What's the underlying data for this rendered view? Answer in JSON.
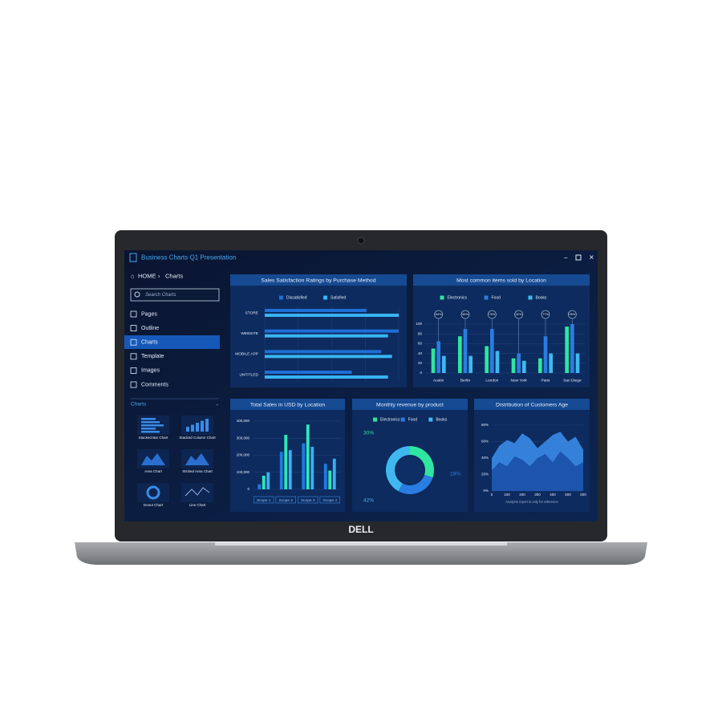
{
  "window": {
    "title": "Business Charts Q1 Presentation"
  },
  "sidebar": {
    "breadcrumb": [
      "HOME",
      "Charts"
    ],
    "search_placeholder": "Search Charts",
    "menu": [
      "Pages",
      "Outline",
      "Charts",
      "Template",
      "Images",
      "Comments"
    ],
    "section": "Charts",
    "thumbnails": [
      "Stacked Bar Chart",
      "Stacked Column Chart",
      "Area Chart",
      "Sticked Area Chart",
      "Donut Chart",
      "Line Chart"
    ]
  },
  "brand": "DELL",
  "chart_data": [
    {
      "type": "hbar",
      "title": "Sales Satisfaction Ratings by Purchase Method",
      "categories": [
        "STORE",
        "WEBSITE",
        "MOBILE APP",
        "UNTITLED"
      ],
      "series": [
        {
          "name": "Dissatisfied",
          "color": "#1f6fd6",
          "values": [
            76,
            100,
            87,
            65
          ]
        },
        {
          "name": "Satisfied",
          "color": "#38b4f2",
          "values": [
            100,
            92,
            95,
            92
          ]
        }
      ],
      "xlim": [
        0,
        100
      ]
    },
    {
      "type": "bar",
      "title": "Most common items sold by Location",
      "categories": [
        "Austin",
        "Berlin",
        "London",
        "New York",
        "Paris",
        "San Diego"
      ],
      "series": [
        {
          "name": "Electronics",
          "color": "#2ee6a0",
          "values": [
            50,
            75,
            55,
            30,
            30,
            95
          ]
        },
        {
          "name": "Food",
          "color": "#2a7de1",
          "values": [
            65,
            90,
            90,
            40,
            75,
            100
          ]
        },
        {
          "name": "Books",
          "color": "#3fb8f0",
          "values": [
            35,
            35,
            45,
            25,
            40,
            40
          ]
        }
      ],
      "annotations": [
        "64%",
        "50%",
        "75%",
        "42%",
        "77%",
        "95%"
      ],
      "ylim": [
        0,
        100
      ],
      "yticks": [
        0,
        20,
        40,
        60,
        80,
        100
      ]
    },
    {
      "type": "bar",
      "title": "Total Sales in USD by Location",
      "categories": [
        "Scope 1",
        "Scope 2",
        "Scope 3",
        "Scope 4"
      ],
      "series": [
        {
          "color": "#1e7be0",
          "values": [
            30000,
            220000,
            270000,
            150000
          ]
        },
        {
          "color": "#2ee6b8",
          "values": [
            80000,
            320000,
            380000,
            110000
          ]
        },
        {
          "color": "#39b0f0",
          "values": [
            100000,
            230000,
            250000,
            180000
          ]
        }
      ],
      "ylim": [
        0,
        400000
      ],
      "yticks": [
        0,
        {
          "value": 100000,
          "label": "100,000"
        },
        {
          "value": 200000,
          "label": "200,000"
        },
        {
          "value": 300000,
          "label": "300,000"
        },
        {
          "value": 400000,
          "label": "400,000"
        }
      ]
    },
    {
      "type": "donut",
      "title": "Monthly revenue by product",
      "categories": [
        "Electronics",
        "Food",
        "Books"
      ],
      "values": [
        30,
        28,
        42
      ],
      "value_labels": [
        "30%",
        "28%",
        "42%"
      ],
      "colors": [
        "#2ee6a0",
        "#2a7de1",
        "#3fb8f0"
      ]
    },
    {
      "type": "area",
      "title": "Distribution of Customers Age",
      "x": [
        0,
        50,
        100,
        150,
        200,
        250,
        300,
        350,
        400,
        450,
        500,
        550,
        600
      ],
      "series": [
        {
          "color": "#3a8be8",
          "values": [
            40,
            55,
            62,
            58,
            70,
            64,
            52,
            60,
            68,
            72,
            60,
            66,
            50
          ]
        },
        {
          "color": "#1a4fa8",
          "values": [
            25,
            35,
            30,
            42,
            38,
            30,
            40,
            45,
            35,
            48,
            40,
            30,
            35
          ]
        }
      ],
      "xlim": [
        0,
        600
      ],
      "xticks": [
        0,
        100,
        200,
        300,
        400,
        500,
        600
      ],
      "ylim": [
        0,
        80
      ],
      "yticks": [
        {
          "value": 0,
          "label": "0%"
        },
        {
          "value": 20,
          "label": "20%"
        },
        {
          "value": 40,
          "label": "40%"
        },
        {
          "value": 60,
          "label": "60%"
        },
        {
          "value": 80,
          "label": "80%"
        }
      ],
      "note": "Analysis report is only for reference"
    }
  ]
}
